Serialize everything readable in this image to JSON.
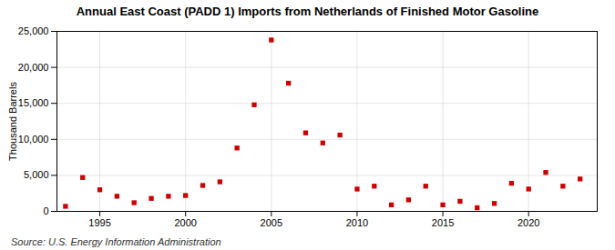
{
  "chart_data": {
    "type": "scatter",
    "title": "Annual East Coast (PADD 1) Imports from Netherlands of Finished Motor Gasoline",
    "ylabel": "Thousand Barrels",
    "source": "Source: U.S. Energy Information Administration",
    "x": [
      1993,
      1994,
      1995,
      1996,
      1997,
      1998,
      1999,
      2000,
      2001,
      2002,
      2003,
      2004,
      2005,
      2006,
      2007,
      2008,
      2009,
      2010,
      2011,
      2012,
      2013,
      2014,
      2015,
      2016,
      2017,
      2018,
      2019,
      2020,
      2021,
      2022,
      2023
    ],
    "values": [
      700,
      4700,
      3000,
      2100,
      1200,
      1800,
      2100,
      2200,
      3600,
      4100,
      8800,
      14800,
      23800,
      17800,
      10900,
      9500,
      10600,
      3100,
      3500,
      900,
      1600,
      3500,
      900,
      1400,
      500,
      1100,
      3900,
      3100,
      5400,
      3500,
      4500
    ],
    "color": "#cc0000",
    "marker": "square",
    "xlim": [
      1992.5,
      2024
    ],
    "ylim": [
      0,
      25000
    ],
    "xticks": [
      1995,
      2000,
      2005,
      2010,
      2015,
      2020
    ],
    "yticks": [
      0,
      {
        "value": 5000,
        "label": "5,000"
      },
      {
        "value": 10000,
        "label": "10,000"
      },
      {
        "value": 15000,
        "label": "15,000"
      },
      {
        "value": 20000,
        "label": "20,000"
      },
      {
        "value": 25000,
        "label": "25,000"
      }
    ],
    "grid": true
  }
}
